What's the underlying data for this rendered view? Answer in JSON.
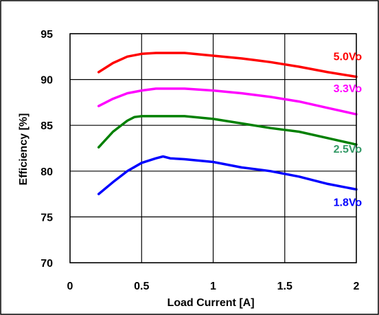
{
  "chart_data": {
    "type": "line",
    "title": "",
    "xlabel": "Load Current [A]",
    "ylabel": "Efficiency [%]",
    "xlim": [
      0,
      2
    ],
    "ylim": [
      70,
      95
    ],
    "x_ticks": [
      "0",
      "0.5",
      "1",
      "1.5",
      "2"
    ],
    "y_ticks": [
      "70",
      "75",
      "80",
      "85",
      "90",
      "95"
    ],
    "grid": true,
    "series": [
      {
        "name": "5.0Vo",
        "color": "#ff0000",
        "x": [
          0.2,
          0.3,
          0.4,
          0.5,
          0.6,
          0.8,
          1.0,
          1.2,
          1.4,
          1.6,
          1.8,
          2.0
        ],
        "y": [
          90.8,
          91.8,
          92.5,
          92.8,
          92.9,
          92.9,
          92.6,
          92.3,
          91.9,
          91.4,
          90.8,
          90.3
        ]
      },
      {
        "name": "3.3Vo",
        "color": "#ff00ff",
        "x": [
          0.2,
          0.3,
          0.4,
          0.5,
          0.6,
          0.8,
          1.0,
          1.2,
          1.4,
          1.6,
          1.8,
          2.0
        ],
        "y": [
          87.1,
          87.9,
          88.5,
          88.8,
          89.0,
          89.0,
          88.8,
          88.5,
          88.1,
          87.6,
          86.9,
          86.2
        ]
      },
      {
        "name": "2.5Vo",
        "color": "#008000",
        "x": [
          0.2,
          0.3,
          0.4,
          0.45,
          0.5,
          0.6,
          0.8,
          1.0,
          1.2,
          1.4,
          1.6,
          1.8,
          2.0
        ],
        "y": [
          82.6,
          84.3,
          85.5,
          85.9,
          86.0,
          86.0,
          86.0,
          85.7,
          85.2,
          84.7,
          84.3,
          83.6,
          82.9
        ]
      },
      {
        "name": "1.8Vo",
        "color": "#0000ff",
        "x": [
          0.2,
          0.3,
          0.4,
          0.5,
          0.6,
          0.65,
          0.7,
          0.8,
          1.0,
          1.2,
          1.4,
          1.6,
          1.8,
          2.0
        ],
        "y": [
          77.5,
          78.8,
          80.0,
          80.9,
          81.4,
          81.6,
          81.4,
          81.3,
          81.0,
          80.4,
          80.0,
          79.4,
          78.6,
          78.0
        ]
      }
    ],
    "series_labels": [
      {
        "text": "5.0Vo",
        "x": 1.84,
        "y": 92.1,
        "color": "#ff0000"
      },
      {
        "text": "3.3Vo",
        "x": 1.84,
        "y": 88.6,
        "color": "#ff00ff"
      },
      {
        "text": "2.5Vo",
        "x": 1.84,
        "y": 82.0,
        "color": "#339966"
      },
      {
        "text": "1.8Vo",
        "x": 1.84,
        "y": 76.2,
        "color": "#0000ff"
      }
    ]
  }
}
